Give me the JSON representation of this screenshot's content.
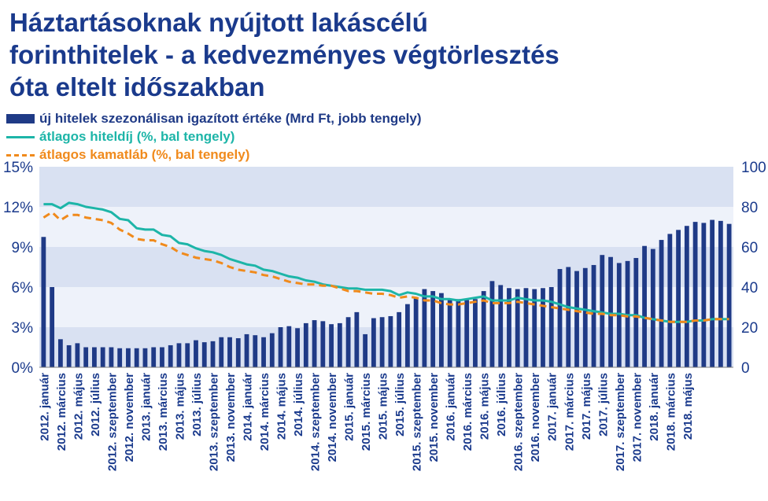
{
  "title": {
    "line1": "Háztartásoknak nyújtott lakáscélú",
    "line2_bold": "forinthitelek",
    "line2_rest": " - a kedvezményes végtörlesztés",
    "line3": "óta eltelt időszakban"
  },
  "legend": [
    {
      "label": "új hitelek szezonálisan igazított értéke (Mrd Ft, jobb tengely)",
      "color": "#1f3a86",
      "style": "bar"
    },
    {
      "label": "átlagos hiteldíj (%, bal tengely)",
      "color": "#1db5a8",
      "style": "line"
    },
    {
      "label": "átlagos kamatláb (%, bal tengely)",
      "color": "#f08a1c",
      "style": "dashed"
    }
  ],
  "chart_data": {
    "type": "bar+line",
    "x_tick_labels": [
      "2012. január",
      "2012. március",
      "2012. május",
      "2012. július",
      "2012. szeptember",
      "2012. november",
      "2013. január",
      "2013. március",
      "2013. május",
      "2013. július",
      "2013. szeptember",
      "2013. november",
      "2014. január",
      "2014. március",
      "2014. május",
      "2014. július",
      "2014. szeptember",
      "2014. november",
      "2015. január",
      "2015. március",
      "2015. május",
      "2015. július",
      "2015. szeptember",
      "2015. november",
      "2016. január",
      "2016. március",
      "2016. május",
      "2016. július",
      "2016. szeptember",
      "2016. november",
      "2017. január",
      "2017. március",
      "2017. május",
      "2017. július",
      "2017. szeptember",
      "2017. november",
      "2018. január",
      "2018. március",
      "2018. május"
    ],
    "left_axis": {
      "min": 0,
      "max": 15,
      "ticks": [
        "0%",
        "3%",
        "6%",
        "9%",
        "12%",
        "15%"
      ]
    },
    "right_axis": {
      "min": 0,
      "max": 100,
      "ticks": [
        "0",
        "20",
        "40",
        "60",
        "80",
        "100"
      ]
    },
    "background_bands": true,
    "series": [
      {
        "name": "új hitelek szezonálisan igazított értéke (Mrd Ft, jobb tengely)",
        "type": "bar",
        "axis": "right",
        "color": "#1f3a86",
        "values": [
          65,
          40,
          14,
          11,
          12,
          10,
          10,
          10,
          10,
          9.5,
          9.5,
          9.5,
          9.5,
          10,
          10,
          11,
          12,
          12,
          13.5,
          12.5,
          13,
          15,
          15,
          14.5,
          16.5,
          16,
          15,
          17,
          20,
          20.5,
          19.5,
          22,
          23.5,
          23,
          21.5,
          22,
          25,
          27.5,
          16.5,
          24.5,
          25,
          25.5,
          27.5,
          31.5,
          35,
          39,
          38,
          37,
          33.5,
          34,
          33.5,
          34,
          38,
          43,
          41,
          39.5,
          39,
          39.5,
          39,
          39.5,
          40,
          49,
          50,
          48,
          49.5,
          51,
          56,
          55,
          52,
          53,
          54.5,
          60.5,
          59,
          63.5,
          66.5,
          68.5,
          70.5,
          72.5,
          72,
          73.5,
          73,
          71.5
        ]
      },
      {
        "name": "átlagos hiteldíj (%, bal tengely)",
        "type": "line",
        "axis": "left",
        "color": "#1db5a8",
        "values": [
          12.2,
          12.2,
          11.9,
          12.3,
          12.2,
          12.0,
          11.9,
          11.8,
          11.6,
          11.1,
          11.0,
          10.4,
          10.3,
          10.3,
          9.9,
          9.8,
          9.3,
          9.2,
          8.9,
          8.7,
          8.6,
          8.4,
          8.1,
          7.9,
          7.7,
          7.6,
          7.3,
          7.2,
          7.0,
          6.8,
          6.7,
          6.5,
          6.4,
          6.2,
          6.1,
          6.0,
          5.9,
          5.9,
          5.8,
          5.8,
          5.8,
          5.7,
          5.4,
          5.6,
          5.5,
          5.3,
          5.3,
          5.1,
          5.1,
          5.0,
          5.1,
          5.2,
          5.3,
          5.0,
          5.0,
          5.0,
          5.2,
          5.1,
          5.0,
          5.0,
          4.9,
          4.7,
          4.5,
          4.4,
          4.3,
          4.2,
          4.1,
          4.0,
          4.0,
          3.9,
          3.9,
          3.7,
          3.6,
          3.5,
          3.4,
          3.4,
          3.4,
          3.5,
          3.5,
          3.6,
          3.6,
          3.6
        ]
      },
      {
        "name": "átlagos kamatláb (%, bal tengely)",
        "type": "line",
        "axis": "left",
        "color": "#f08a1c",
        "dashed": true,
        "values": [
          11.2,
          11.6,
          11.0,
          11.4,
          11.4,
          11.2,
          11.1,
          11.0,
          10.8,
          10.3,
          10.0,
          9.6,
          9.5,
          9.5,
          9.2,
          9.0,
          8.6,
          8.4,
          8.2,
          8.1,
          8.0,
          7.8,
          7.5,
          7.3,
          7.2,
          7.1,
          6.9,
          6.8,
          6.6,
          6.4,
          6.3,
          6.2,
          6.2,
          6.1,
          6.1,
          5.9,
          5.7,
          5.7,
          5.6,
          5.5,
          5.5,
          5.4,
          5.2,
          5.3,
          5.2,
          5.0,
          5.0,
          4.8,
          4.7,
          4.7,
          4.8,
          4.9,
          5.0,
          4.8,
          4.8,
          4.8,
          4.9,
          4.8,
          4.7,
          4.6,
          4.5,
          4.4,
          4.3,
          4.2,
          4.1,
          4.0,
          4.0,
          3.9,
          3.9,
          3.8,
          3.8,
          3.7,
          3.6,
          3.5,
          3.4,
          3.4,
          3.4,
          3.5,
          3.5,
          3.6,
          3.6,
          3.6
        ]
      }
    ]
  }
}
